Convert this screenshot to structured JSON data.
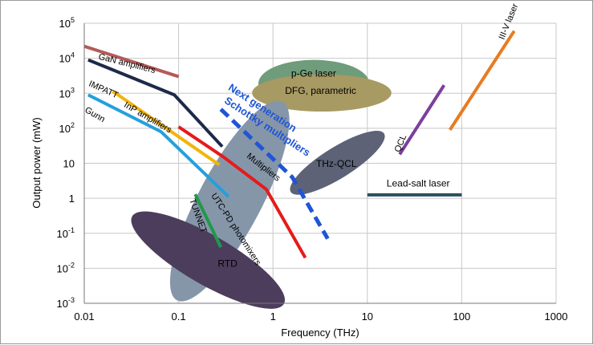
{
  "chart_data": {
    "type": "line",
    "title": "",
    "xlabel": "Frequency (THz)",
    "ylabel": "Output power (mW)",
    "xscale": "log",
    "yscale": "log",
    "xlim": [
      0.01,
      1000
    ],
    "ylim": [
      0.001,
      100000
    ],
    "grid": true,
    "x_ticks": [
      {
        "value": 0.01,
        "label": "0.01"
      },
      {
        "value": 0.1,
        "label": "0.1"
      },
      {
        "value": 1,
        "label": "1"
      },
      {
        "value": 10,
        "label": "10"
      },
      {
        "value": 100,
        "label": "100"
      },
      {
        "value": 1000,
        "label": "1000"
      }
    ],
    "y_ticks": [
      {
        "value": 0.001,
        "base": "10",
        "exp": "-3"
      },
      {
        "value": 0.01,
        "base": "10",
        "exp": "-2"
      },
      {
        "value": 0.1,
        "base": "10",
        "exp": "-1"
      },
      {
        "value": 1,
        "base": "1",
        "exp": ""
      },
      {
        "value": 10,
        "base": "10",
        "exp": ""
      },
      {
        "value": 100,
        "base": "10",
        "exp": "2"
      },
      {
        "value": 1000,
        "base": "10",
        "exp": "3"
      },
      {
        "value": 10000,
        "base": "10",
        "exp": "4"
      },
      {
        "value": 100000,
        "base": "10",
        "exp": "5"
      }
    ],
    "regions": [
      {
        "name": "p-Ge laser",
        "color": "#6f9c7b",
        "x": [
          0.7,
          10.5
        ],
        "y": [
          400,
          9000
        ]
      },
      {
        "name": "DFG, parametric",
        "color": "#a89a63",
        "x": [
          0.6,
          18
        ],
        "y": [
          300,
          3500
        ]
      },
      {
        "name": "THz-QCL",
        "color": "#5d6277",
        "x": [
          1.6,
          14.5
        ],
        "y": [
          1.3,
          82
        ],
        "angle": -32
      },
      {
        "name": "UTC-PD photomixers",
        "color": "#8696a9",
        "x": [
          0.055,
          2.2
        ],
        "y": [
          0.0035,
          200
        ],
        "angle": -62
      },
      {
        "name": "RTD",
        "color": "#4d3d5d",
        "x": [
          0.028,
          1.5
        ],
        "y": [
          0.0021,
          0.14
        ],
        "angle": 30
      }
    ],
    "series": [
      {
        "name": "GaN amplifiers",
        "color": "#b35a5a",
        "width": 4,
        "dashed": false,
        "x": [
          0.01,
          0.1
        ],
        "y": [
          22000,
          3000
        ]
      },
      {
        "name": "IMPATT",
        "color": "#1c2a4a",
        "width": 4,
        "dashed": false,
        "x": [
          0.011,
          0.09,
          0.29
        ],
        "y": [
          9000,
          900,
          30
        ]
      },
      {
        "name": "InP amplifiers",
        "color": "#f2b40b",
        "width": 4,
        "dashed": false,
        "x": [
          0.02,
          0.27
        ],
        "y": [
          1150,
          9
        ]
      },
      {
        "name": "Gunn",
        "color": "#24a0dd",
        "width": 4,
        "dashed": false,
        "x": [
          0.011,
          0.065,
          0.34
        ],
        "y": [
          900,
          80,
          1.1
        ]
      },
      {
        "name": "Multipliers",
        "color": "#e51b1b",
        "width": 4,
        "dashed": false,
        "x": [
          0.1,
          0.3,
          0.85,
          2.2
        ],
        "y": [
          110,
          15,
          1.8,
          0.02
        ]
      },
      {
        "name": "Next generation Schottky multipliers",
        "color": "#1f55d6",
        "width": 5,
        "dashed": true,
        "x": [
          0.28,
          1.6,
          3.8
        ],
        "y": [
          350,
          4,
          0.07
        ]
      },
      {
        "name": "TUNNETT",
        "color": "#1f9a4a",
        "width": 4,
        "dashed": false,
        "x": [
          0.15,
          0.28
        ],
        "y": [
          1.3,
          0.04
        ]
      },
      {
        "name": "Lead-salt laser",
        "color": "#2b4f5e",
        "width": 4,
        "dashed": false,
        "x": [
          10,
          100
        ],
        "y": [
          1.25,
          1.25
        ]
      },
      {
        "name": "QCL",
        "color": "#7b3f9e",
        "width": 4,
        "dashed": false,
        "x": [
          22,
          65
        ],
        "y": [
          18,
          1700
        ]
      },
      {
        "name": "III-V laser",
        "color": "#e87b22",
        "width": 4,
        "dashed": false,
        "x": [
          75,
          360
        ],
        "y": [
          90,
          60000
        ]
      }
    ],
    "labels": [
      {
        "text": "GaN amplifiers",
        "x": 0.014,
        "y": 9500,
        "rotate": 14,
        "cls": "lbl"
      },
      {
        "text": "IMPATT",
        "x": 0.011,
        "y": 1650,
        "rotate": 24,
        "cls": "lbl"
      },
      {
        "text": "InP amplifiers",
        "x": 0.026,
        "y": 420,
        "rotate": 30,
        "cls": "lbl"
      },
      {
        "text": "Gunn",
        "x": 0.01,
        "y": 300,
        "rotate": 30,
        "cls": "lbl"
      },
      {
        "text": "Next generation",
        "x": 0.33,
        "y": 1300,
        "rotate": 33,
        "cls": "lbl-blue"
      },
      {
        "text": "Schottky multipliers",
        "x": 0.3,
        "y": 550,
        "rotate": 33,
        "cls": "lbl-blue"
      },
      {
        "text": "p-Ge laser",
        "x": 2.7,
        "y": 3000,
        "rotate": 0,
        "cls": "lbl-big",
        "anchor": "middle"
      },
      {
        "text": "DFG, parametric",
        "x": 3.2,
        "y": 950,
        "rotate": 0,
        "cls": "lbl-big",
        "anchor": "middle"
      },
      {
        "text": "THz-QCL",
        "x": 4.7,
        "y": 7.8,
        "rotate": 0,
        "cls": "lbl-big",
        "anchor": "middle"
      },
      {
        "text": "Multipliers",
        "x": 0.52,
        "y": 15,
        "rotate": 38,
        "cls": "lbl"
      },
      {
        "text": "UTC-PD photomixers",
        "x": 0.22,
        "y": 1.2,
        "rotate": 57,
        "cls": "lbl"
      },
      {
        "text": "TUNNET",
        "x": 0.13,
        "y": 0.9,
        "rotate": 70,
        "cls": "lbl"
      },
      {
        "text": "RTD",
        "x": 0.33,
        "y": 0.011,
        "rotate": 0,
        "cls": "lbl-big",
        "anchor": "middle"
      },
      {
        "text": "Lead-salt laser",
        "x": 16,
        "y": 2.15,
        "rotate": 0,
        "cls": "lbl-big"
      },
      {
        "text": "QCL",
        "x": 22,
        "y": 20,
        "rotate": -68,
        "cls": "lbl"
      },
      {
        "text": "III-V laser",
        "x": 280,
        "y": 33000,
        "rotate": -68,
        "cls": "lbl"
      }
    ]
  }
}
